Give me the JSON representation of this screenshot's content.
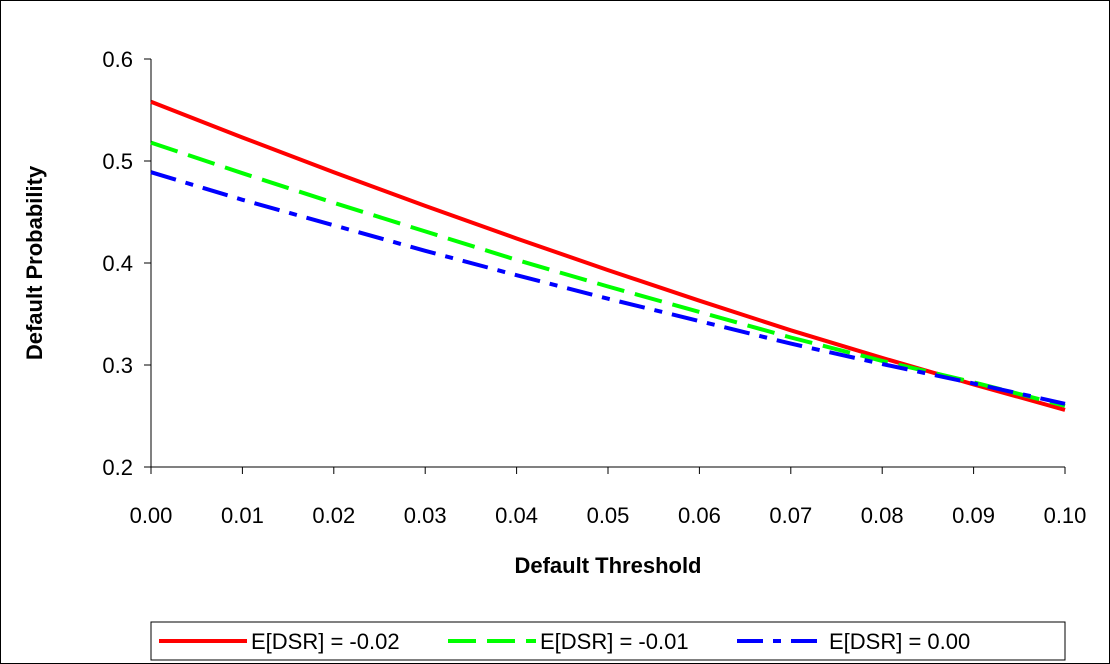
{
  "chart_data": {
    "type": "line",
    "title": "",
    "xlabel": "Default Threshold",
    "ylabel": "Default Probability",
    "xlim": [
      0.0,
      0.1
    ],
    "ylim": [
      0.2,
      0.6
    ],
    "xticks": [
      "0.00",
      "0.01",
      "0.02",
      "0.03",
      "0.04",
      "0.05",
      "0.06",
      "0.07",
      "0.08",
      "0.09",
      "0.10"
    ],
    "yticks": [
      "0.2",
      "0.3",
      "0.4",
      "0.5",
      "0.6"
    ],
    "grid": false,
    "legend_position": "bottom",
    "x": [
      0.0,
      0.01,
      0.02,
      0.03,
      0.04,
      0.05,
      0.06,
      0.07,
      0.08,
      0.09,
      0.1
    ],
    "series": [
      {
        "name": "E[DSR] = -0.02",
        "color": "#ff0000",
        "style": "solid",
        "values": [
          0.558,
          0.523,
          0.489,
          0.456,
          0.424,
          0.393,
          0.363,
          0.334,
          0.307,
          0.281,
          0.256
        ]
      },
      {
        "name": "E[DSR] = -0.01",
        "color": "#00ff00",
        "style": "dashed",
        "values": [
          0.518,
          0.488,
          0.459,
          0.431,
          0.403,
          0.377,
          0.352,
          0.327,
          0.304,
          0.283,
          0.26
        ]
      },
      {
        "name": "E[DSR] = 0.00",
        "color": "#0000ff",
        "style": "dashdot",
        "values": [
          0.489,
          0.462,
          0.437,
          0.412,
          0.388,
          0.365,
          0.343,
          0.321,
          0.301,
          0.282,
          0.262
        ]
      }
    ]
  }
}
